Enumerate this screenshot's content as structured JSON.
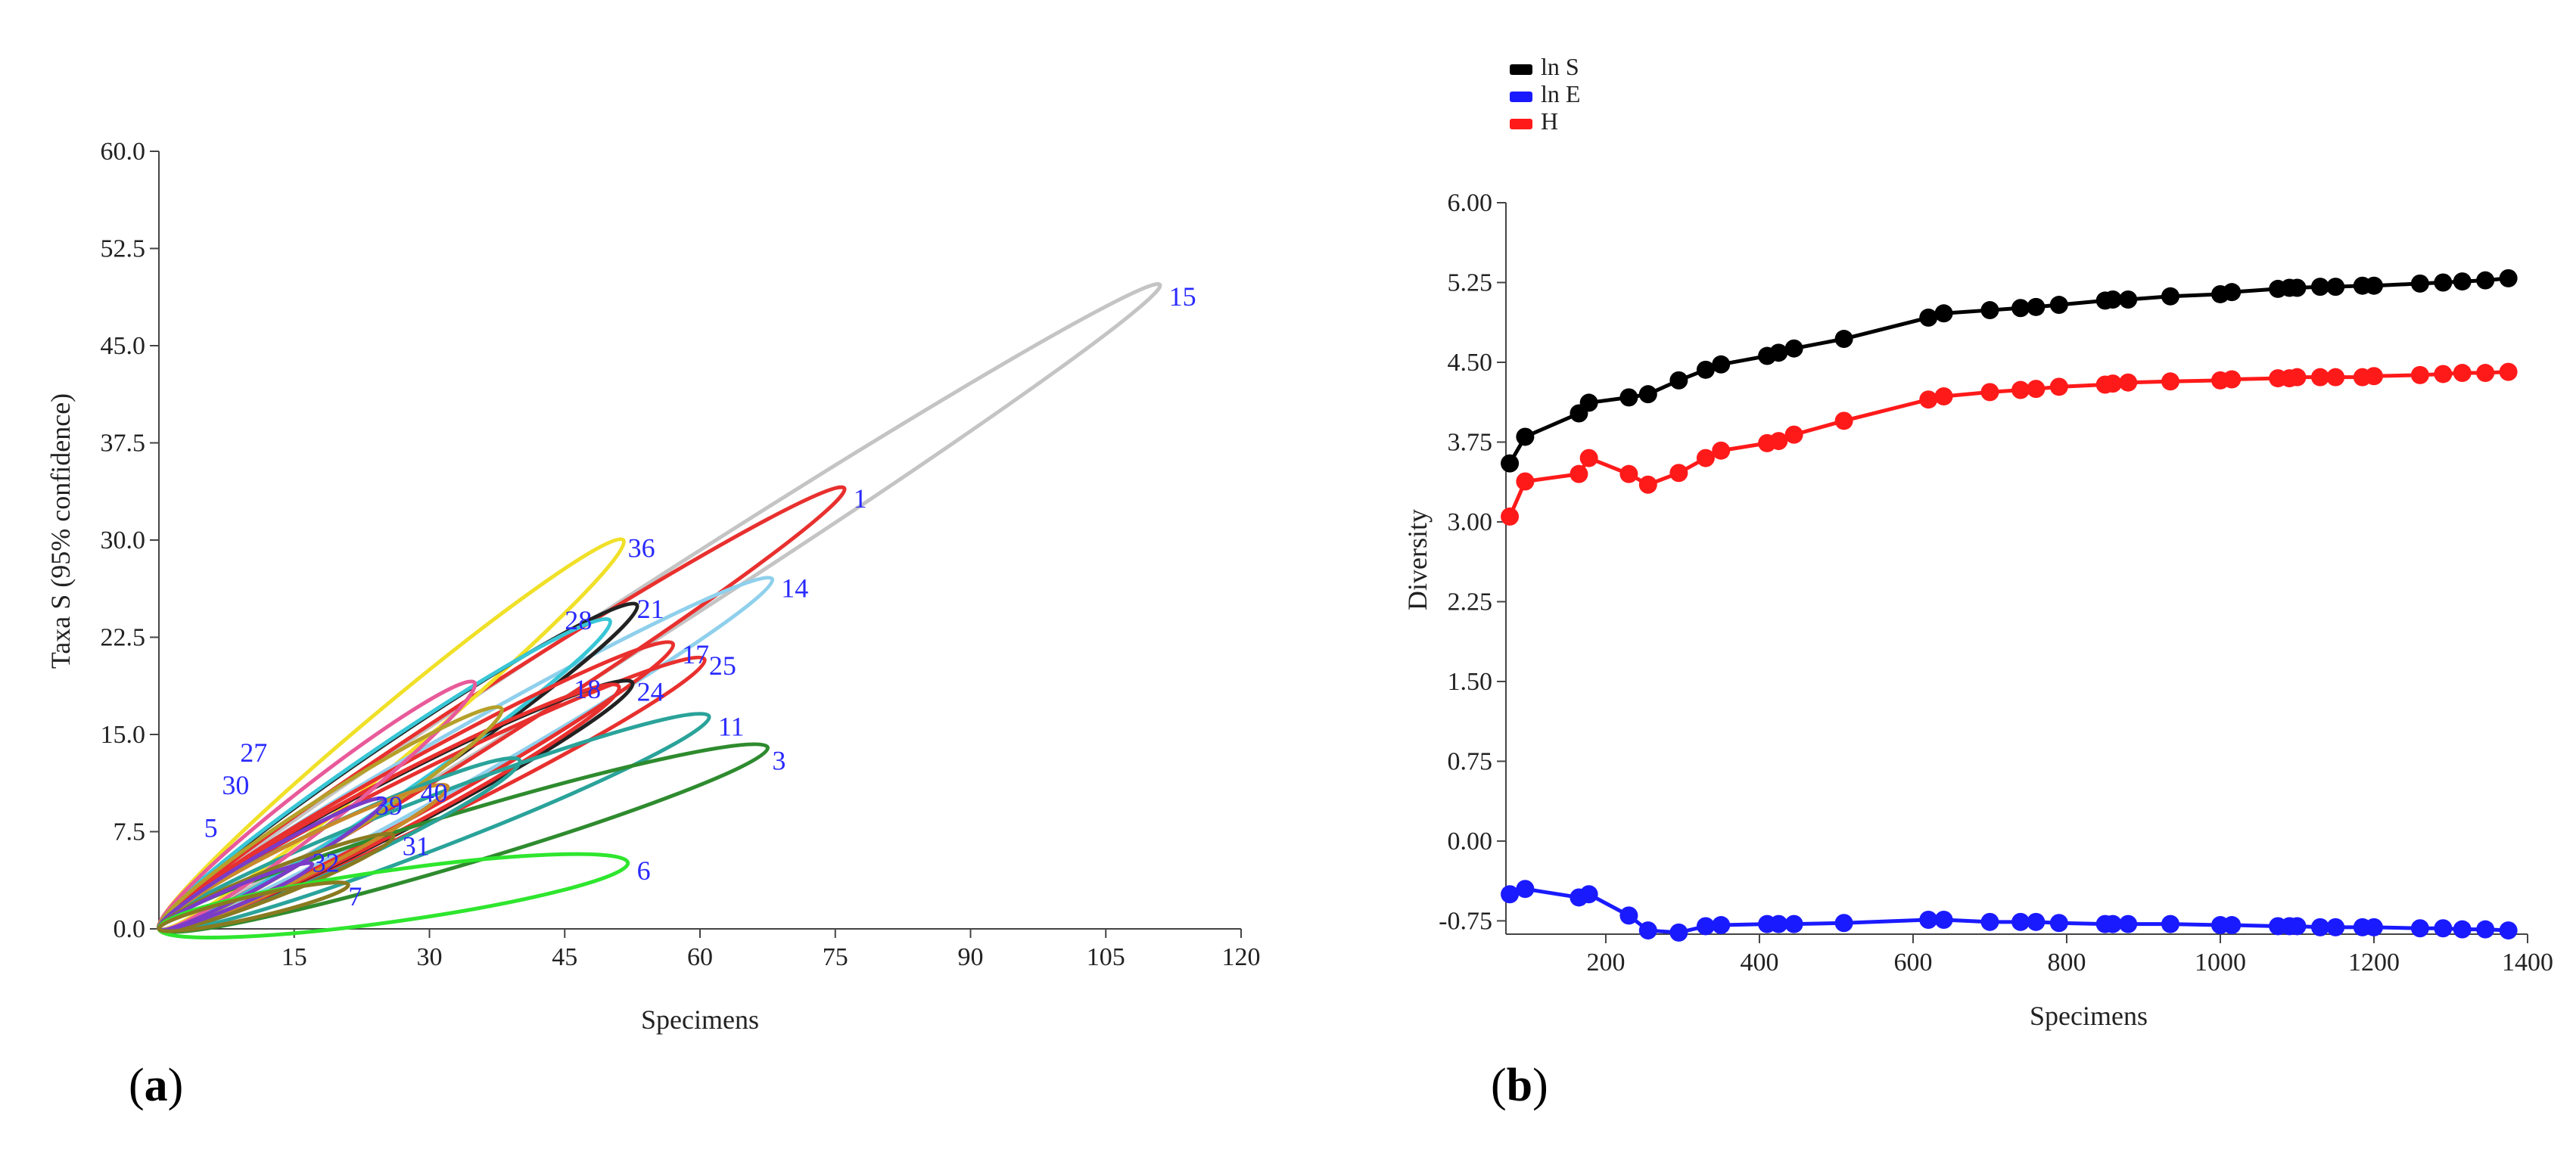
{
  "chart_data": [
    {
      "panel": "a",
      "type": "scatter",
      "subtype": "confidence-ellipses",
      "title": "",
      "xlabel": "Specimens",
      "ylabel": "Taxa S (95% confidence)",
      "xlim": [
        0,
        120
      ],
      "ylim": [
        0,
        60
      ],
      "xticks": [
        "15",
        "30",
        "45",
        "60",
        "75",
        "90",
        "105",
        "120"
      ],
      "yticks": [
        "0.0",
        "7.5",
        "15.0",
        "22.5",
        "30.0",
        "37.5",
        "45.0",
        "52.5",
        "60.0"
      ],
      "grid": false,
      "ellipses": [
        {
          "label": "15",
          "x": 111,
          "y": 49.7,
          "color": "#c4c4c4",
          "label_x": 112,
          "label_y": 48.8
        },
        {
          "label": "1",
          "x": 76,
          "y": 34,
          "color": "#e8302e",
          "label_x": 77,
          "label_y": 33.2
        },
        {
          "label": "36",
          "x": 51.5,
          "y": 30,
          "color": "#f0e028",
          "label_x": 52,
          "label_y": 29.4
        },
        {
          "label": "14",
          "x": 68,
          "y": 27,
          "color": "#8fd0ec",
          "label_x": 69,
          "label_y": 26.3
        },
        {
          "label": "21",
          "x": 53,
          "y": 25,
          "color": "#222222",
          "label_x": 53,
          "label_y": 24.7
        },
        {
          "label": "28",
          "x": 50,
          "y": 23.8,
          "color": "#38c6d6",
          "label_x": 45,
          "label_y": 23.8
        },
        {
          "label": "17",
          "x": 57,
          "y": 22,
          "color": "#e8302e",
          "label_x": 58,
          "label_y": 21.2
        },
        {
          "label": "25",
          "x": 60.5,
          "y": 20.8,
          "color": "#e8302e",
          "label_x": 61,
          "label_y": 20.3
        },
        {
          "label": "24",
          "x": 52.5,
          "y": 19,
          "color": "#222222",
          "label_x": 53,
          "label_y": 18.3
        },
        {
          "label": "18",
          "x": 51,
          "y": 18.7,
          "color": "#e8302e",
          "label_x": 46,
          "label_y": 18.5
        },
        {
          "label": "11",
          "x": 61,
          "y": 16.4,
          "color": "#2aa39a",
          "label_x": 62,
          "label_y": 15.6
        },
        {
          "label": "3",
          "x": 67.5,
          "y": 14,
          "color": "#2e8b2e",
          "label_x": 68,
          "label_y": 13
        },
        {
          "label": "27",
          "x": 35,
          "y": 19,
          "color": "#e85a9a",
          "label_x": 9,
          "label_y": 13.6
        },
        {
          "label": "30",
          "x": 38,
          "y": 17,
          "color": "#b5a02a",
          "label_x": 7,
          "label_y": 11.1
        },
        {
          "label": "40",
          "x": 40,
          "y": 13,
          "color": "#2aa39a",
          "label_x": 29,
          "label_y": 10.5
        },
        {
          "label": "39",
          "x": 32,
          "y": 11,
          "color": "#c98a2a",
          "label_x": 24,
          "label_y": 9.5
        },
        {
          "label": "5",
          "x": 25,
          "y": 10,
          "color": "#7a3cc8",
          "label_x": 5,
          "label_y": 7.8
        },
        {
          "label": "31",
          "x": 26,
          "y": 7.2,
          "color": "#8a7a20",
          "label_x": 27,
          "label_y": 6.4
        },
        {
          "label": "32",
          "x": 17,
          "y": 5,
          "color": "#7a3cc8",
          "label_x": 17,
          "label_y": 5.1
        },
        {
          "label": "6",
          "x": 52,
          "y": 5.1,
          "color": "#2ee62e",
          "label_x": 53,
          "label_y": 4.5
        },
        {
          "label": "7",
          "x": 21,
          "y": 3.4,
          "color": "#8a7a20",
          "label_x": 21,
          "label_y": 2.5
        }
      ]
    },
    {
      "panel": "b",
      "type": "line",
      "title": "",
      "xlabel": "Specimens",
      "ylabel": "Diversity",
      "xlim": [
        70,
        1400
      ],
      "ylim": [
        -0.875,
        6.0
      ],
      "xticks": [
        "200",
        "400",
        "600",
        "800",
        "1000",
        "1200",
        "1400"
      ],
      "yticks": [
        "-0.75",
        "0.00",
        "0.75",
        "1.50",
        "2.25",
        "3.00",
        "3.75",
        "4.50",
        "5.25",
        "6.00"
      ],
      "grid": false,
      "legend_position": "top-left",
      "x": [
        75,
        95,
        165,
        178,
        230,
        255,
        295,
        330,
        350,
        410,
        425,
        445,
        510,
        620,
        640,
        700,
        740,
        760,
        790,
        850,
        860,
        880,
        935,
        1000,
        1015,
        1075,
        1090,
        1100,
        1130,
        1150,
        1185,
        1200,
        1260,
        1290,
        1315,
        1345,
        1375
      ],
      "series": [
        {
          "name": "ln S",
          "color": "#000000",
          "values": [
            3.55,
            3.8,
            4.02,
            4.12,
            4.17,
            4.2,
            4.33,
            4.43,
            4.48,
            4.56,
            4.59,
            4.63,
            4.72,
            4.92,
            4.96,
            4.99,
            5.01,
            5.02,
            5.04,
            5.08,
            5.09,
            5.09,
            5.12,
            5.14,
            5.16,
            5.19,
            5.2,
            5.2,
            5.21,
            5.21,
            5.22,
            5.22,
            5.24,
            5.25,
            5.26,
            5.27,
            5.29
          ]
        },
        {
          "name": "ln E",
          "color": "#1a1aff",
          "values": [
            -0.5,
            -0.45,
            -0.53,
            -0.5,
            -0.7,
            -0.84,
            -0.86,
            -0.8,
            -0.79,
            -0.78,
            -0.78,
            -0.78,
            -0.77,
            -0.74,
            -0.74,
            -0.76,
            -0.76,
            -0.76,
            -0.77,
            -0.78,
            -0.78,
            -0.78,
            -0.78,
            -0.79,
            -0.79,
            -0.8,
            -0.8,
            -0.8,
            -0.81,
            -0.81,
            -0.81,
            -0.81,
            -0.82,
            -0.82,
            -0.83,
            -0.83,
            -0.84
          ]
        },
        {
          "name": "H",
          "color": "#ff1a1a",
          "values": [
            3.05,
            3.38,
            3.45,
            3.6,
            3.45,
            3.35,
            3.46,
            3.6,
            3.67,
            3.74,
            3.76,
            3.82,
            3.95,
            4.15,
            4.18,
            4.22,
            4.24,
            4.25,
            4.27,
            4.29,
            4.3,
            4.31,
            4.32,
            4.33,
            4.34,
            4.35,
            4.35,
            4.36,
            4.36,
            4.36,
            4.36,
            4.37,
            4.38,
            4.39,
            4.4,
            4.4,
            4.41
          ]
        }
      ]
    }
  ],
  "panel_labels": {
    "a": "a",
    "b": "b"
  }
}
